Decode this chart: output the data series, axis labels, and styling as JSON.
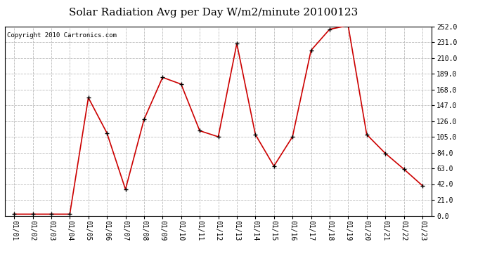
{
  "title": "Solar Radiation Avg per Day W/m2/minute 20100123",
  "copyright": "Copyright 2010 Cartronics.com",
  "background_color": "#ffffff",
  "plot_bg_color": "#ffffff",
  "line_color": "#cc0000",
  "marker_color": "#000000",
  "grid_color": "#bbbbbb",
  "yticks": [
    0.0,
    21.0,
    42.0,
    63.0,
    84.0,
    105.0,
    126.0,
    147.0,
    168.0,
    189.0,
    210.0,
    231.0,
    252.0
  ],
  "x_labels": [
    "01/01",
    "01/02",
    "01/03",
    "01/04",
    "01/05",
    "01/06",
    "01/07",
    "01/08",
    "01/09",
    "01/10",
    "01/11",
    "01/12",
    "01/13",
    "01/14",
    "01/15",
    "01/16",
    "01/17",
    "01/18",
    "01/19",
    "01/20",
    "01/21",
    "01/22",
    "01/23"
  ],
  "dates": [
    1,
    2,
    3,
    4,
    5,
    6,
    7,
    8,
    9,
    10,
    11,
    12,
    13,
    14,
    15,
    16,
    17,
    18,
    19,
    20,
    21,
    22,
    23
  ],
  "actual_values": {
    "1": 2.0,
    "2": 2.0,
    "3": 2.0,
    "4": 2.0,
    "5": 157.0,
    "6": 110.0,
    "7": 35.0,
    "8": 128.0,
    "9": 184.0,
    "10": 175.0,
    "11": 113.0,
    "12": 105.0,
    "13": 229.0,
    "14": 108.0,
    "15": 66.0,
    "16": 105.0,
    "17": 220.0,
    "18": 248.0,
    "19": 253.0,
    "20": 108.0,
    "21": 83.0,
    "22": 62.0,
    "23": 40.0
  },
  "ylim": [
    0.0,
    252.0
  ],
  "title_fontsize": 11,
  "label_fontsize": 7,
  "copyright_fontsize": 6.5
}
